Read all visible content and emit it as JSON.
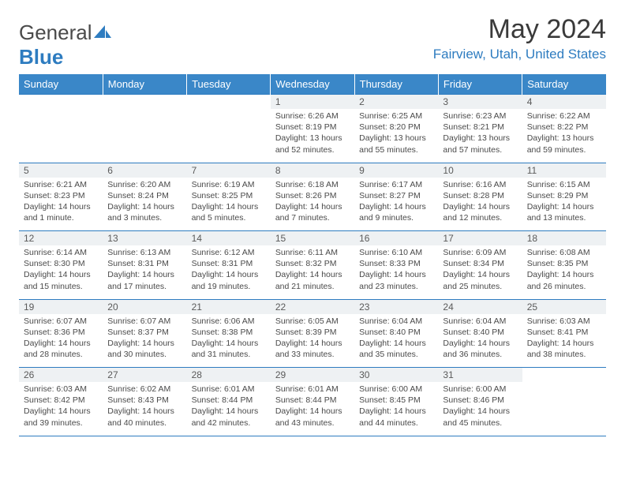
{
  "logo": {
    "text_general": "General",
    "text_blue": "Blue"
  },
  "title": "May 2024",
  "location": "Fairview, Utah, United States",
  "day_headers": [
    "Sunday",
    "Monday",
    "Tuesday",
    "Wednesday",
    "Thursday",
    "Friday",
    "Saturday"
  ],
  "colors": {
    "header_bg": "#3a87c8",
    "accent": "#2e7cc0",
    "daynum_bg": "#eef1f3",
    "text": "#3a3a3a"
  },
  "weeks": [
    {
      "nums": [
        "",
        "",
        "",
        "1",
        "2",
        "3",
        "4"
      ],
      "cells": [
        "",
        "",
        "",
        "Sunrise: 6:26 AM\nSunset: 8:19 PM\nDaylight: 13 hours and 52 minutes.",
        "Sunrise: 6:25 AM\nSunset: 8:20 PM\nDaylight: 13 hours and 55 minutes.",
        "Sunrise: 6:23 AM\nSunset: 8:21 PM\nDaylight: 13 hours and 57 minutes.",
        "Sunrise: 6:22 AM\nSunset: 8:22 PM\nDaylight: 13 hours and 59 minutes."
      ]
    },
    {
      "nums": [
        "5",
        "6",
        "7",
        "8",
        "9",
        "10",
        "11"
      ],
      "cells": [
        "Sunrise: 6:21 AM\nSunset: 8:23 PM\nDaylight: 14 hours and 1 minute.",
        "Sunrise: 6:20 AM\nSunset: 8:24 PM\nDaylight: 14 hours and 3 minutes.",
        "Sunrise: 6:19 AM\nSunset: 8:25 PM\nDaylight: 14 hours and 5 minutes.",
        "Sunrise: 6:18 AM\nSunset: 8:26 PM\nDaylight: 14 hours and 7 minutes.",
        "Sunrise: 6:17 AM\nSunset: 8:27 PM\nDaylight: 14 hours and 9 minutes.",
        "Sunrise: 6:16 AM\nSunset: 8:28 PM\nDaylight: 14 hours and 12 minutes.",
        "Sunrise: 6:15 AM\nSunset: 8:29 PM\nDaylight: 14 hours and 13 minutes."
      ]
    },
    {
      "nums": [
        "12",
        "13",
        "14",
        "15",
        "16",
        "17",
        "18"
      ],
      "cells": [
        "Sunrise: 6:14 AM\nSunset: 8:30 PM\nDaylight: 14 hours and 15 minutes.",
        "Sunrise: 6:13 AM\nSunset: 8:31 PM\nDaylight: 14 hours and 17 minutes.",
        "Sunrise: 6:12 AM\nSunset: 8:31 PM\nDaylight: 14 hours and 19 minutes.",
        "Sunrise: 6:11 AM\nSunset: 8:32 PM\nDaylight: 14 hours and 21 minutes.",
        "Sunrise: 6:10 AM\nSunset: 8:33 PM\nDaylight: 14 hours and 23 minutes.",
        "Sunrise: 6:09 AM\nSunset: 8:34 PM\nDaylight: 14 hours and 25 minutes.",
        "Sunrise: 6:08 AM\nSunset: 8:35 PM\nDaylight: 14 hours and 26 minutes."
      ]
    },
    {
      "nums": [
        "19",
        "20",
        "21",
        "22",
        "23",
        "24",
        "25"
      ],
      "cells": [
        "Sunrise: 6:07 AM\nSunset: 8:36 PM\nDaylight: 14 hours and 28 minutes.",
        "Sunrise: 6:07 AM\nSunset: 8:37 PM\nDaylight: 14 hours and 30 minutes.",
        "Sunrise: 6:06 AM\nSunset: 8:38 PM\nDaylight: 14 hours and 31 minutes.",
        "Sunrise: 6:05 AM\nSunset: 8:39 PM\nDaylight: 14 hours and 33 minutes.",
        "Sunrise: 6:04 AM\nSunset: 8:40 PM\nDaylight: 14 hours and 35 minutes.",
        "Sunrise: 6:04 AM\nSunset: 8:40 PM\nDaylight: 14 hours and 36 minutes.",
        "Sunrise: 6:03 AM\nSunset: 8:41 PM\nDaylight: 14 hours and 38 minutes."
      ]
    },
    {
      "nums": [
        "26",
        "27",
        "28",
        "29",
        "30",
        "31",
        ""
      ],
      "cells": [
        "Sunrise: 6:03 AM\nSunset: 8:42 PM\nDaylight: 14 hours and 39 minutes.",
        "Sunrise: 6:02 AM\nSunset: 8:43 PM\nDaylight: 14 hours and 40 minutes.",
        "Sunrise: 6:01 AM\nSunset: 8:44 PM\nDaylight: 14 hours and 42 minutes.",
        "Sunrise: 6:01 AM\nSunset: 8:44 PM\nDaylight: 14 hours and 43 minutes.",
        "Sunrise: 6:00 AM\nSunset: 8:45 PM\nDaylight: 14 hours and 44 minutes.",
        "Sunrise: 6:00 AM\nSunset: 8:46 PM\nDaylight: 14 hours and 45 minutes.",
        ""
      ]
    }
  ]
}
